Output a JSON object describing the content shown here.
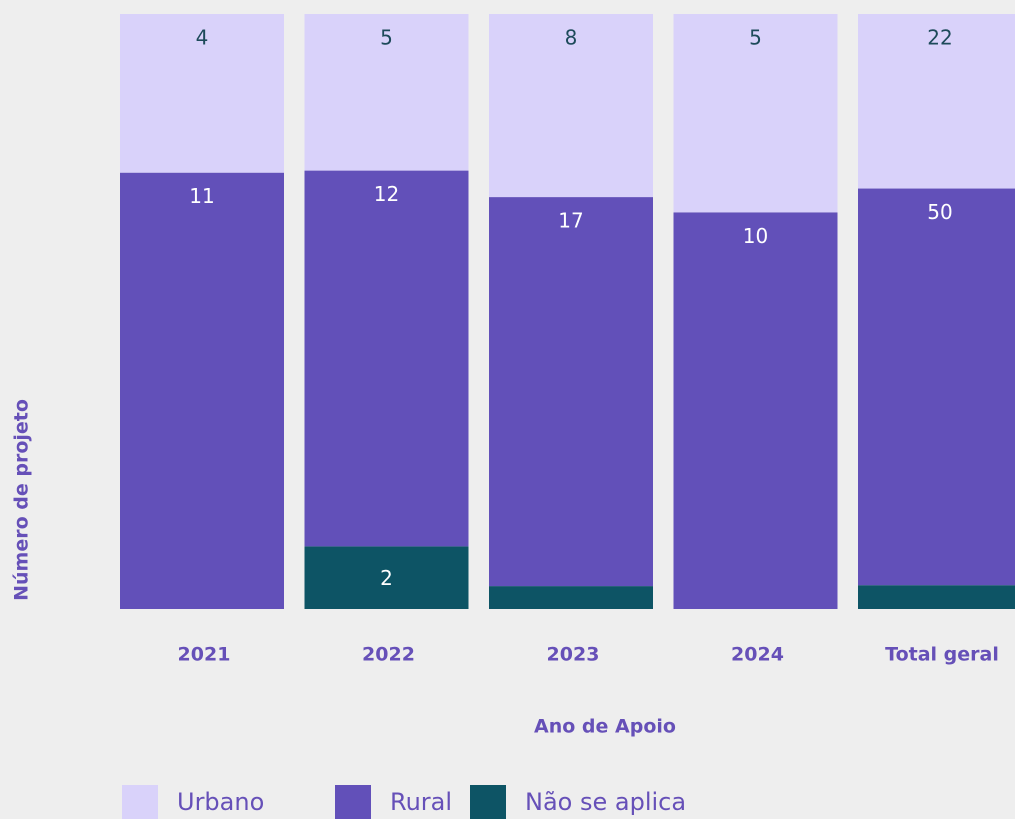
{
  "chart_data": {
    "type": "stacked_bar_percent",
    "x_label": "Ano de Apoio",
    "y_label": "Número de projeto",
    "categories": [
      "2021",
      "2022",
      "2023",
      "2024",
      "Total geral"
    ],
    "series": [
      {
        "name": "Não se aplica",
        "color": "#0d5465",
        "values": [
          null,
          2,
          1,
          null,
          3
        ]
      },
      {
        "name": "Rural",
        "color": "#6250b9",
        "values": [
          11,
          12,
          17,
          10,
          50
        ]
      },
      {
        "name": "Urbano",
        "color": "#d9d2fa",
        "values": [
          4,
          5,
          8,
          5,
          22
        ]
      }
    ],
    "legend": "bottom"
  }
}
